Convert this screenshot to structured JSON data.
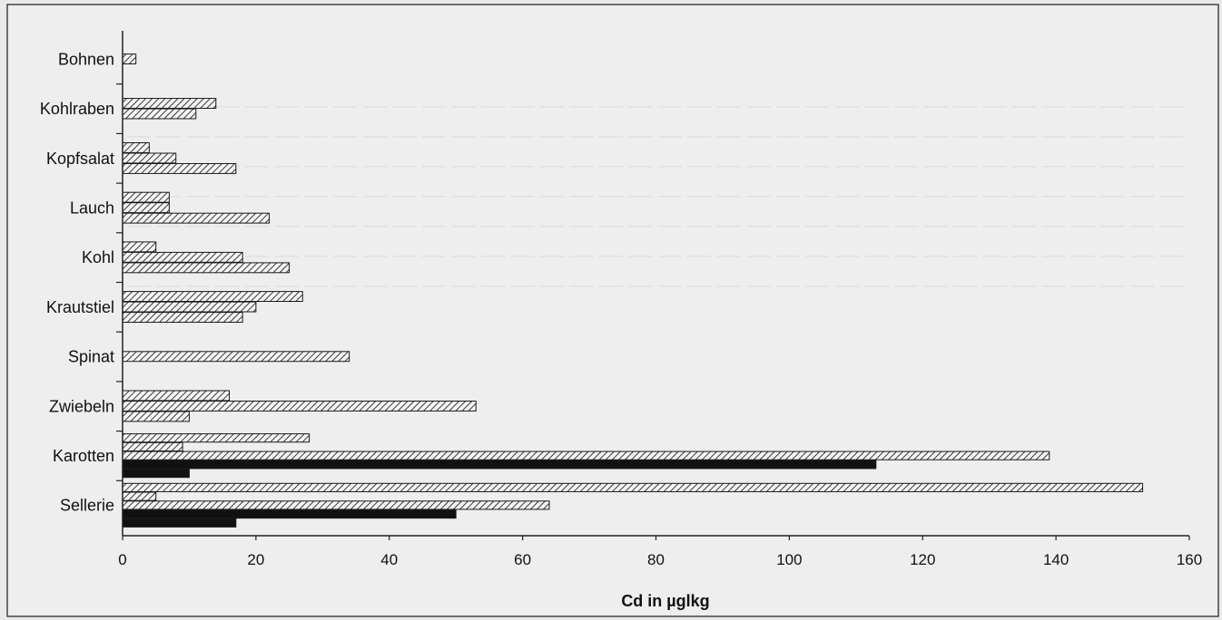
{
  "chart_data": {
    "type": "bar",
    "orientation": "horizontal",
    "title": "",
    "xlabel": "Cd in µglkg",
    "ylabel": "",
    "xlim": [
      0,
      160
    ],
    "xticks": [
      0,
      20,
      40,
      60,
      80,
      100,
      120,
      140,
      160
    ],
    "categories": [
      "Bohnen",
      "Kohlraben",
      "Kopfsalat",
      "Lauch",
      "Kohl",
      "Krautstiel",
      "Spinat",
      "Zwiebeln",
      "Karotten",
      "Sellerie"
    ],
    "bars": [
      [
        {
          "value": 2,
          "fill": "hatch"
        }
      ],
      [
        {
          "value": 14,
          "fill": "hatch"
        },
        {
          "value": 11,
          "fill": "hatch"
        }
      ],
      [
        {
          "value": 4,
          "fill": "hatch"
        },
        {
          "value": 8,
          "fill": "hatch"
        },
        {
          "value": 17,
          "fill": "hatch"
        }
      ],
      [
        {
          "value": 7,
          "fill": "hatch"
        },
        {
          "value": 7,
          "fill": "hatch"
        },
        {
          "value": 22,
          "fill": "hatch"
        }
      ],
      [
        {
          "value": 5,
          "fill": "hatch"
        },
        {
          "value": 18,
          "fill": "hatch"
        },
        {
          "value": 25,
          "fill": "hatch"
        }
      ],
      [
        {
          "value": 27,
          "fill": "hatch"
        },
        {
          "value": 20,
          "fill": "hatch"
        },
        {
          "value": 18,
          "fill": "hatch"
        }
      ],
      [
        {
          "value": 34,
          "fill": "hatch"
        }
      ],
      [
        {
          "value": 16,
          "fill": "hatch"
        },
        {
          "value": 53,
          "fill": "hatch"
        },
        {
          "value": 10,
          "fill": "hatch"
        }
      ],
      [
        {
          "value": 28,
          "fill": "hatch"
        },
        {
          "value": 9,
          "fill": "hatch"
        },
        {
          "value": 139,
          "fill": "hatch"
        },
        {
          "value": 113,
          "fill": "solid"
        },
        {
          "value": 10,
          "fill": "solid"
        }
      ],
      [
        {
          "value": 153,
          "fill": "hatch"
        },
        {
          "value": 5,
          "fill": "hatch"
        },
        {
          "value": 64,
          "fill": "hatch"
        },
        {
          "value": 50,
          "fill": "solid"
        },
        {
          "value": 17,
          "fill": "solid"
        }
      ]
    ],
    "colors": {
      "bar_stroke": "#1a1a1a",
      "solid": "#111111",
      "hatch_line": "#222222"
    }
  }
}
